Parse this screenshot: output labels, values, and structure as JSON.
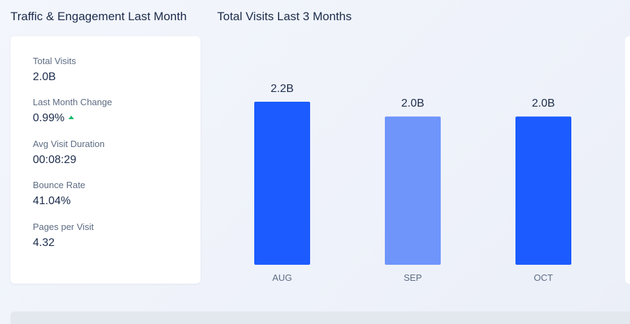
{
  "headings": {
    "left": "Traffic & Engagement Last Month",
    "right": "Total Visits Last 3 Months"
  },
  "metrics": [
    {
      "label": "Total Visits",
      "value": "2.0B"
    },
    {
      "label": "Last Month Change",
      "value": "0.99%",
      "trend": "up",
      "trend_color": "#13b86d"
    },
    {
      "label": "Avg Visit Duration",
      "value": "00:08:29"
    },
    {
      "label": "Bounce Rate",
      "value": "41.04%"
    },
    {
      "label": "Pages per Visit",
      "value": "4.32"
    }
  ],
  "colors": {
    "bar_primary": "#1b5bff",
    "bar_highlight": "#6f95fb",
    "background": "#edf1f9",
    "card": "#ffffff",
    "text": "#1b2b4b"
  },
  "chart_data": {
    "type": "bar",
    "categories": [
      "AUG",
      "SEP",
      "OCT"
    ],
    "values": [
      2.2,
      2.0,
      2.0
    ],
    "value_labels": [
      "2.2B",
      "2.0B",
      "2.0B"
    ],
    "ylim": [
      0,
      2.35
    ],
    "bar_colors": [
      "#1b5bff",
      "#6f95fb",
      "#1b5bff"
    ]
  }
}
